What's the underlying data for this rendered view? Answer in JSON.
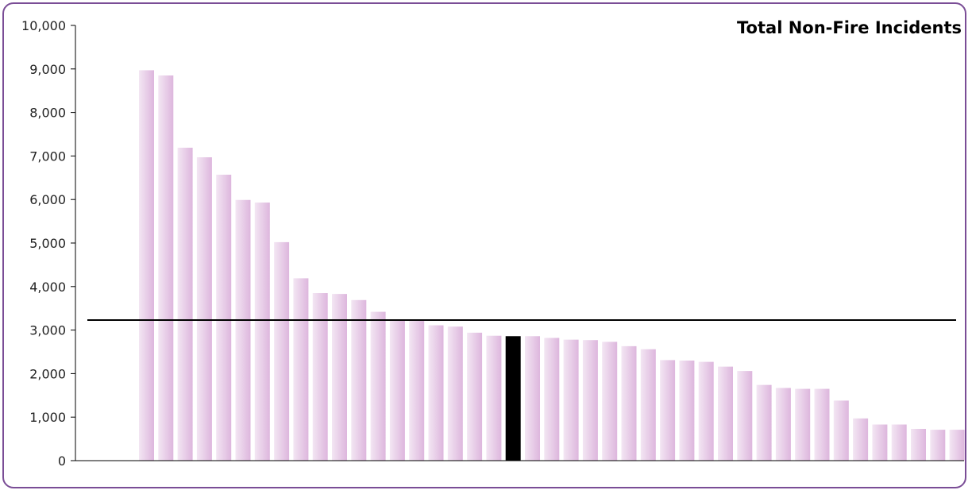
{
  "chart_data": {
    "type": "bar",
    "title": "Total Non-Fire Incidents",
    "xlabel": "",
    "ylabel": "",
    "ylim": [
      0,
      10000
    ],
    "yticks": [
      0,
      1000,
      2000,
      3000,
      4000,
      5000,
      6000,
      7000,
      8000,
      9000,
      10000
    ],
    "ytick_labels": [
      "0",
      "1,000",
      "2,000",
      "3,000",
      "4,000",
      "5,000",
      "6,000",
      "7,000",
      "8,000",
      "9,000",
      "10,000"
    ],
    "grid": false,
    "legend": "none",
    "values": [
      8970,
      8850,
      7190,
      6970,
      6570,
      5990,
      5930,
      5020,
      4190,
      3850,
      3830,
      3690,
      3420,
      3230,
      3210,
      3110,
      3080,
      2940,
      2870,
      2860,
      2860,
      2820,
      2780,
      2770,
      2730,
      2630,
      2560,
      2310,
      2300,
      2270,
      2160,
      2060,
      1740,
      1670,
      1650,
      1650,
      1380,
      970,
      830,
      830,
      730,
      710,
      710
    ],
    "highlight_index": 19,
    "reference_line": 3230,
    "colors": {
      "bar_light": "#f3e6f3",
      "bar_dark": "#ddb6dd",
      "highlight": "#000000",
      "reference_line": "#000000",
      "axis": "#000000",
      "border": "#7a4d96"
    }
  }
}
